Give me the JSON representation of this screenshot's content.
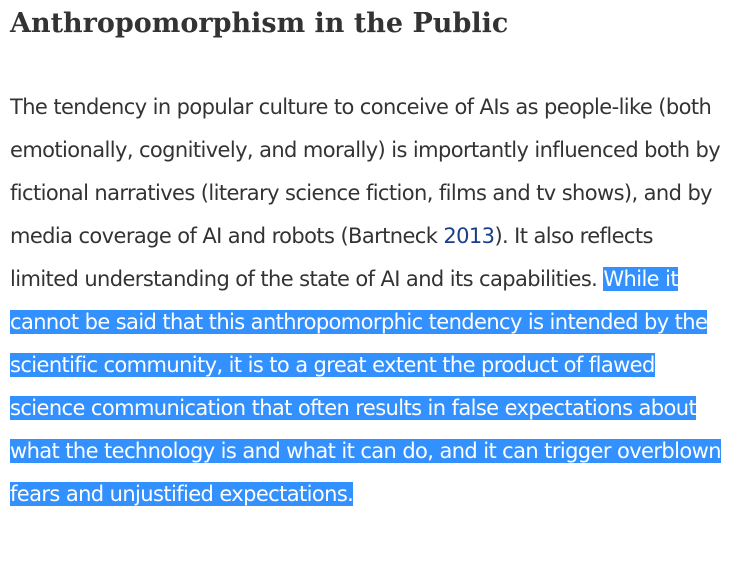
{
  "section": {
    "heading": "Anthropomorphism in the Public",
    "paragraph": {
      "text_1": "The tendency in popular culture to conceive of AIs as people-like (both emotionally, cognitively, and morally) is importantly influenced both by fictional narratives (literary science fiction, films and tv shows), and by media coverage of AI and robots (Bartneck ",
      "citation_year": "2013",
      "text_2": "). It also reflects limited understanding of the state of AI and its capabilities. ",
      "selected_text": "While it cannot be said that this anthropomorphic tendency is intended by the scientific community, it is to a great extent the product of flawed science communication that often results in false expectations about what the technology is and what it can do, and it can trigger overblown fears and unjustified expectations."
    }
  },
  "colors": {
    "text": "#333333",
    "link": "#1a3f8a",
    "selection_background": "#3390ff",
    "selection_text": "#ffffff"
  }
}
